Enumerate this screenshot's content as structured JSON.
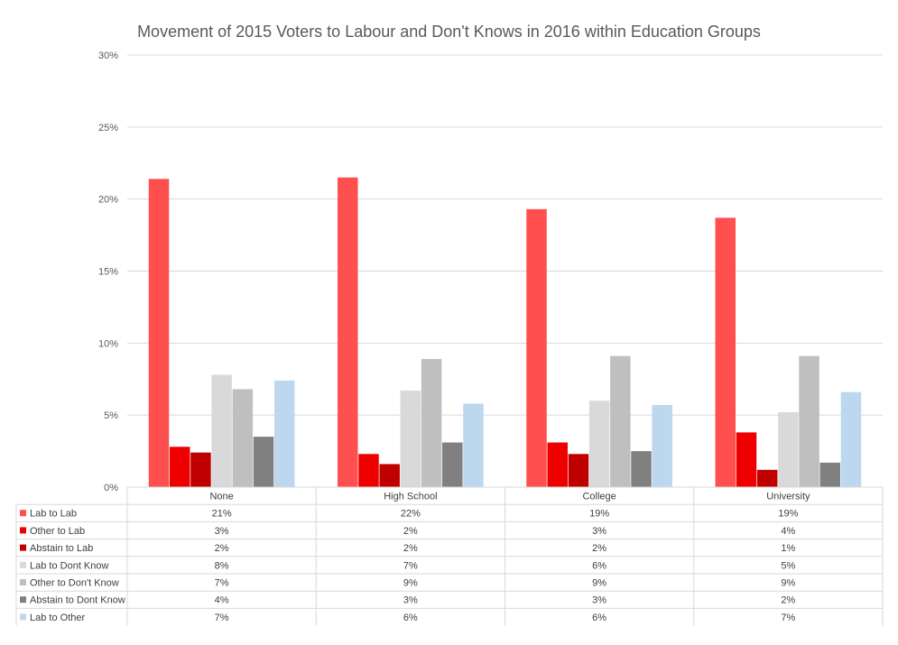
{
  "chart_data": {
    "type": "bar",
    "title": "Movement of 2015 Voters to Labour and Don't Knows in 2016 within Education Groups",
    "categories": [
      "None",
      "High School",
      "College",
      "University"
    ],
    "y_ticks": [
      "0%",
      "5%",
      "10%",
      "15%",
      "20%",
      "25%",
      "30%"
    ],
    "ylim": [
      0,
      30
    ],
    "grid": true,
    "legend_placement": "data table below chart",
    "series": [
      {
        "name": "Lab to Lab",
        "color": "#ff4f4f",
        "values": [
          21.4,
          21.5,
          19.3,
          18.7
        ],
        "labels": [
          "21%",
          "22%",
          "19%",
          "19%"
        ]
      },
      {
        "name": "Other to Lab",
        "color": "#ee0000",
        "values": [
          2.8,
          2.3,
          3.1,
          3.8
        ],
        "labels": [
          "3%",
          "2%",
          "3%",
          "4%"
        ]
      },
      {
        "name": "Abstain to Lab",
        "color": "#c00000",
        "values": [
          2.4,
          1.6,
          2.3,
          1.2
        ],
        "labels": [
          "2%",
          "2%",
          "2%",
          "1%"
        ]
      },
      {
        "name": "Lab to Dont Know",
        "color": "#d9d9d9",
        "values": [
          7.8,
          6.7,
          6.0,
          5.2
        ],
        "labels": [
          "8%",
          "7%",
          "6%",
          "5%"
        ]
      },
      {
        "name": "Other to Don't Know",
        "color": "#bfbfbf",
        "values": [
          6.8,
          8.9,
          9.1,
          9.1
        ],
        "labels": [
          "7%",
          "9%",
          "9%",
          "9%"
        ]
      },
      {
        "name": "Abstain to Dont Know",
        "color": "#808080",
        "values": [
          3.5,
          3.1,
          2.5,
          1.7
        ],
        "labels": [
          "4%",
          "3%",
          "3%",
          "2%"
        ]
      },
      {
        "name": "Lab to Other",
        "color": "#bdd7ee",
        "values": [
          7.4,
          5.8,
          5.7,
          6.6
        ],
        "labels": [
          "7%",
          "6%",
          "6%",
          "7%"
        ]
      }
    ]
  }
}
